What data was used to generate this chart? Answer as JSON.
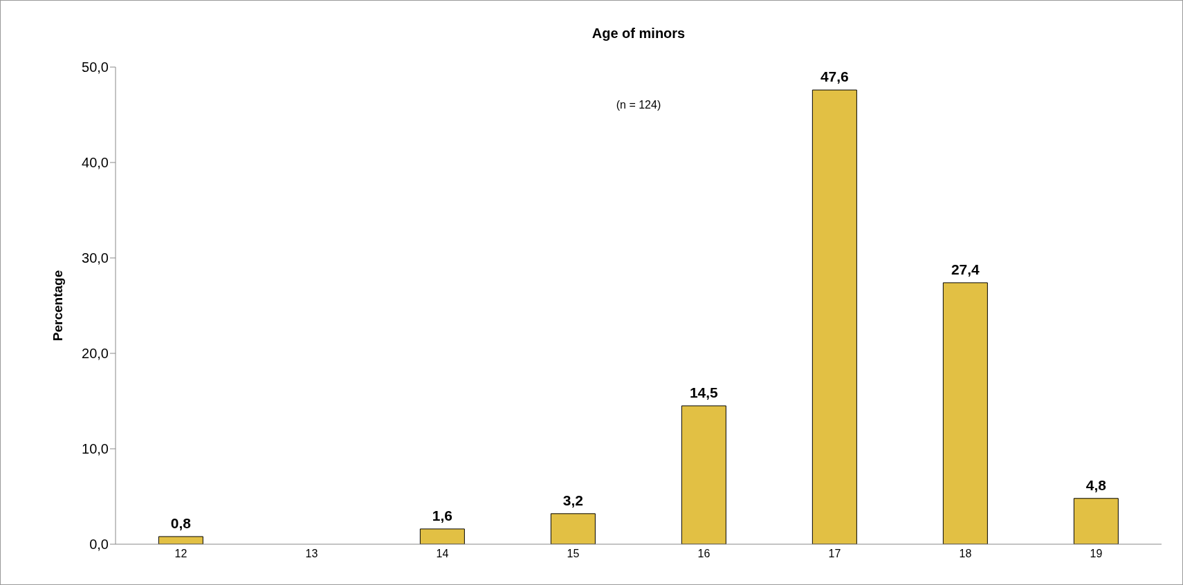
{
  "chart_data": {
    "type": "bar",
    "title": "Age of minors",
    "ylabel": "Percentage",
    "annotations": [
      "(n = 124)"
    ],
    "categories": [
      "12",
      "13",
      "14",
      "15",
      "16",
      "17",
      "18",
      "19"
    ],
    "values": [
      0.8,
      null,
      1.6,
      3.2,
      14.5,
      47.6,
      27.4,
      4.8
    ],
    "value_labels": [
      "0,8",
      null,
      "1,6",
      "3,2",
      "14,5",
      "47,6",
      "27,4",
      "4,8"
    ],
    "color": "#e2c044",
    "ylim": [
      0,
      50
    ],
    "yticks": [
      {
        "value": 0,
        "label": "0,0"
      },
      {
        "value": 10,
        "label": "10,0"
      },
      {
        "value": 20,
        "label": "20,0"
      },
      {
        "value": 30,
        "label": "30,0"
      },
      {
        "value": 40,
        "label": "40,0"
      },
      {
        "value": 50,
        "label": "50,0"
      }
    ],
    "grid": false,
    "legend": false
  }
}
